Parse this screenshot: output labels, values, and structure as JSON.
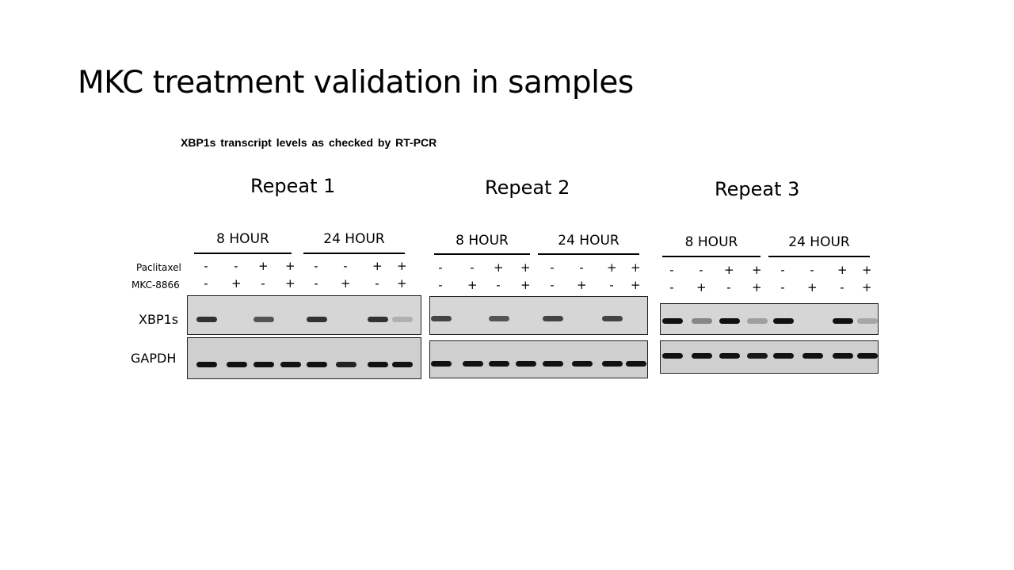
{
  "slide": {
    "title": "MKC treatment validation in samples",
    "subtitle": "XBP1s transcript levels as checked by RT-PCR"
  },
  "row_labels": {
    "paclitaxel": "Paclitaxel",
    "mkc": "MKC-8866",
    "xbp1s": "XBP1s",
    "gapdh": "GAPDH"
  },
  "paclitaxel_signs": [
    "-",
    "-",
    "+",
    "+",
    "-",
    "-",
    "+",
    "+"
  ],
  "mkc_signs": [
    "-",
    "+",
    "-",
    "+",
    "-",
    "+",
    "-",
    "+"
  ],
  "repeats": [
    {
      "title": "Repeat 1",
      "time_labels": [
        "8 HOUR",
        "24 HOUR"
      ],
      "xbp1s_intensity": [
        0.8,
        0,
        0.6,
        0,
        0.8,
        0,
        0.8,
        0.05
      ],
      "gapdh_intensity": [
        1,
        1,
        1,
        1,
        1,
        0.9,
        1,
        1
      ]
    },
    {
      "title": "Repeat 2",
      "time_labels": [
        "8 HOUR",
        "24 HOUR"
      ],
      "xbp1s_intensity": [
        0.7,
        0,
        0.6,
        0,
        0.7,
        0,
        0.7,
        0
      ],
      "gapdh_intensity": [
        1,
        1,
        1,
        1,
        1,
        1,
        1,
        1
      ]
    },
    {
      "title": "Repeat 3",
      "time_labels": [
        "8 HOUR",
        "24 HOUR"
      ],
      "xbp1s_intensity": [
        1,
        0.3,
        1,
        0.15,
        1,
        0,
        1,
        0.1
      ],
      "gapdh_intensity": [
        1,
        1,
        1,
        0.95,
        1,
        1,
        1,
        1
      ]
    }
  ]
}
